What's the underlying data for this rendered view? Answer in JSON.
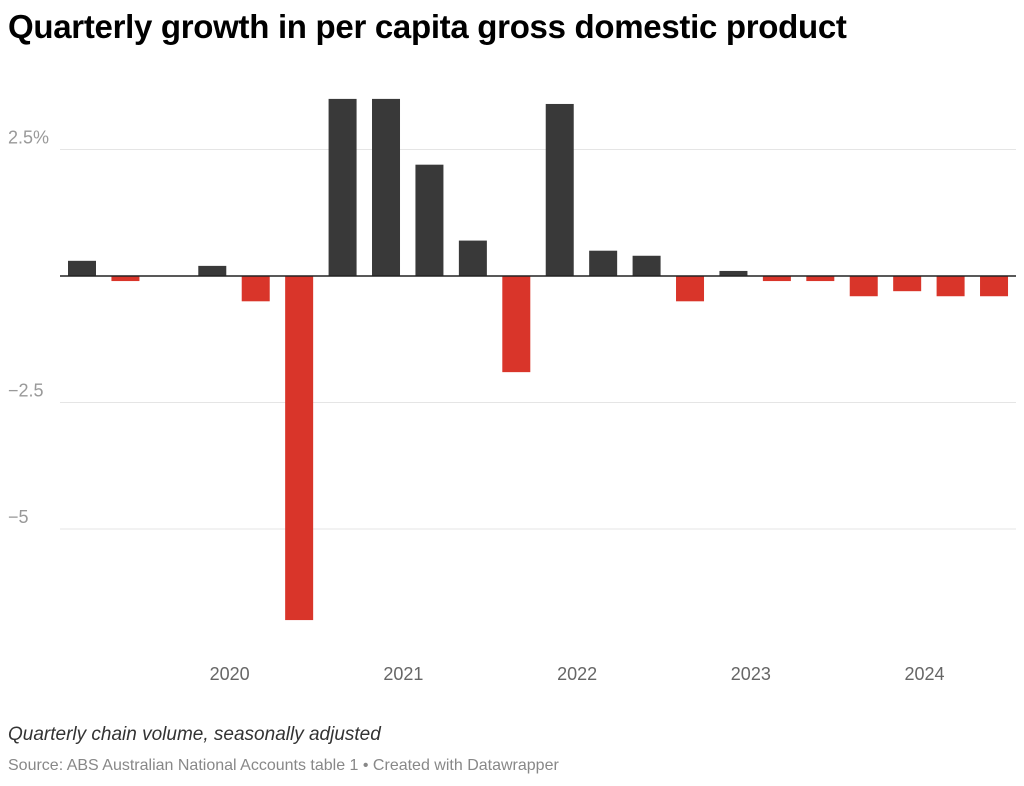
{
  "title": "Quarterly growth in per capita gross domestic product",
  "subtitle": "Quarterly chain volume, seasonally adjusted",
  "source": "Source: ABS Australian National Accounts table 1 • Created with Datawrapper",
  "colors": {
    "positive": "#393939",
    "negative": "#d9352a",
    "grid": "#e5e5e5",
    "baseline": "#222222"
  },
  "chart_data": {
    "type": "bar",
    "values": [
      0.3,
      -0.1,
      0.0,
      0.2,
      -0.5,
      -6.8,
      3.5,
      3.5,
      2.2,
      0.7,
      -1.9,
      3.4,
      0.5,
      0.4,
      -0.5,
      0.1,
      -0.1,
      -0.1,
      -0.4,
      -0.3,
      -0.4,
      -0.4
    ],
    "y_ticks": [
      {
        "value": 2.5,
        "label": "2.5%"
      },
      {
        "value": -2.5,
        "label": "−2.5"
      },
      {
        "value": -5,
        "label": "−5"
      }
    ],
    "x_ticks": [
      {
        "index": 3.4,
        "label": "2020"
      },
      {
        "index": 7.4,
        "label": "2021"
      },
      {
        "index": 11.4,
        "label": "2022"
      },
      {
        "index": 15.4,
        "label": "2023"
      },
      {
        "index": 19.4,
        "label": "2024"
      }
    ],
    "ylim": [
      -7.5,
      3.6
    ],
    "grid": true,
    "unit": "%"
  }
}
